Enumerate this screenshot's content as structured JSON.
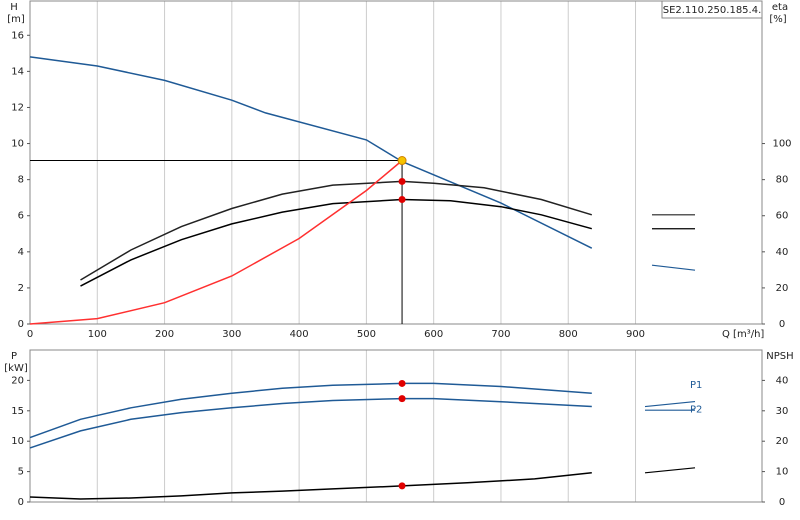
{
  "chart_data": [
    {
      "type": "line",
      "label": "SE2.110.250.185.4.",
      "ylabel": "H",
      "yunit": "[m]",
      "y2label": "eta",
      "y2unit": "[%]",
      "xlabel": "Q [m³/h]",
      "xlim": [
        0,
        1088
      ],
      "xticks": [
        0,
        100,
        200,
        300,
        400,
        500,
        600,
        700,
        800,
        900
      ],
      "xtick_labels": true,
      "ylim": [
        0,
        17.9
      ],
      "yticks": [
        0,
        2,
        4,
        6,
        8,
        10,
        12,
        14,
        16
      ],
      "y2lim": [
        0,
        179
      ],
      "y2ticks": [
        0,
        20,
        40,
        60,
        80,
        100
      ],
      "grid": true,
      "marker_color": "#e00000",
      "duty_point": {
        "x": 553,
        "y": 9.06,
        "color": "#f5c400"
      },
      "series": [
        {
          "color": "#1f5a96",
          "x": [
            0,
            100,
            200,
            300,
            350,
            500,
            553,
            700,
            835
          ],
          "values": [
            14.8,
            14.3,
            13.5,
            12.4,
            11.7,
            10.2,
            9.0,
            6.7,
            4.2
          ]
        },
        {
          "color": "#222222",
          "axis": "y2",
          "x": [
            75,
            150,
            225,
            300,
            375,
            450,
            553,
            600,
            675,
            760,
            835
          ],
          "values": [
            24.4,
            41,
            54,
            64,
            72,
            77,
            79,
            78,
            75.5,
            69,
            60.5
          ],
          "marker": true
        },
        {
          "color": "#000000",
          "axis": "y2",
          "x": [
            75,
            150,
            225,
            300,
            375,
            450,
            553,
            625,
            700,
            760,
            835
          ],
          "values": [
            21,
            35.5,
            46.7,
            55.5,
            62,
            66.7,
            69,
            68.3,
            65,
            60.5,
            52.8
          ],
          "marker": true
        },
        {
          "color": "#ff3030",
          "x": [
            0,
            100,
            200,
            300,
            400,
            500,
            553
          ],
          "values": [
            0,
            0.3,
            1.18,
            2.66,
            4.74,
            7.4,
            9.06
          ]
        }
      ]
    },
    {
      "type": "line",
      "ylabel": "P",
      "yunit": "[kW]",
      "y2label": "NPSH",
      "xlim": [
        0,
        1088
      ],
      "xticks": [
        0,
        100,
        200,
        300,
        400,
        500,
        600,
        700,
        800,
        900
      ],
      "xtick_labels": false,
      "ylim": [
        0,
        25
      ],
      "yticks": [
        0,
        5,
        10,
        15,
        20
      ],
      "y2lim": [
        0,
        50
      ],
      "y2ticks": [
        0,
        10,
        20,
        30,
        40
      ],
      "grid": true,
      "marker_color": "#e00000",
      "duty_x": 553,
      "series": [
        {
          "name": "P1",
          "color": "#1f5a96",
          "x": [
            0,
            75,
            150,
            225,
            300,
            375,
            450,
            553,
            600,
            700,
            835
          ],
          "values": [
            10.6,
            13.6,
            15.5,
            16.9,
            17.9,
            18.7,
            19.2,
            19.5,
            19.5,
            19.0,
            17.9
          ],
          "marker": true
        },
        {
          "name": "P2",
          "color": "#1f5a96",
          "x": [
            0,
            75,
            150,
            225,
            300,
            375,
            450,
            553,
            600,
            700,
            835
          ],
          "values": [
            8.9,
            11.7,
            13.6,
            14.7,
            15.5,
            16.2,
            16.7,
            17.0,
            17.0,
            16.5,
            15.7
          ],
          "marker": true
        },
        {
          "color": "#000000",
          "axis": "y2",
          "x": [
            0,
            75,
            150,
            225,
            300,
            375,
            450,
            553,
            650,
            750,
            835
          ],
          "values": [
            1.65,
            1.0,
            1.3,
            2.0,
            3.0,
            3.6,
            4.3,
            5.3,
            6.3,
            7.6,
            9.6
          ],
          "marker": true
        }
      ]
    }
  ]
}
